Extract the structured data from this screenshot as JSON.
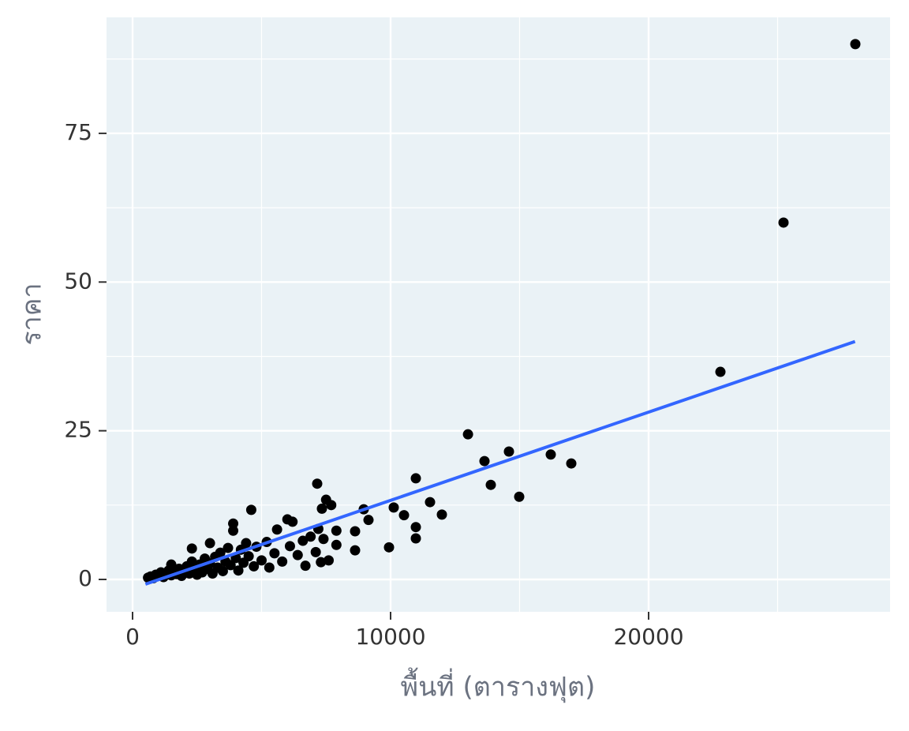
{
  "chart_data": {
    "type": "scatter",
    "xlabel": "พื้นที่ (ตารางฟุต)",
    "ylabel": "ราคา",
    "x": [
      600,
      700,
      800,
      900,
      1000,
      1100,
      1200,
      1300,
      1400,
      1500,
      1500,
      1600,
      1700,
      1800,
      1900,
      2000,
      2100,
      2200,
      2300,
      2300,
      2400,
      2500,
      2600,
      2700,
      2800,
      2900,
      3000,
      3000,
      3100,
      3200,
      3300,
      3400,
      3500,
      3600,
      3700,
      3800,
      3900,
      3900,
      4000,
      4100,
      4200,
      4300,
      4400,
      4500,
      4600,
      4700,
      4800,
      5000,
      5200,
      5300,
      5500,
      5600,
      5800,
      6000,
      6100,
      6200,
      6400,
      6600,
      6700,
      6900,
      7100,
      7200,
      7300,
      7400,
      7500,
      7600,
      7700,
      7900,
      7900,
      7156,
      7339,
      8624,
      8624,
      8960,
      9144,
      9939,
      10122,
      10520,
      10979,
      10979,
      10979,
      11529,
      11988,
      13000,
      13639,
      13884,
      14587,
      14985,
      16208,
      17003,
      22783,
      25229,
      28012
    ],
    "values": [
      0.3,
      0.5,
      0.2,
      0.8,
      0.6,
      1.2,
      0.4,
      1,
      1.5,
      0.7,
      2.5,
      1.3,
      0.9,
      1.8,
      0.6,
      1.4,
      2.2,
      1,
      3,
      5.2,
      1.6,
      0.8,
      2.5,
      1.2,
      3.5,
      1.8,
      6.1,
      2.7,
      1,
      3.8,
      2,
      4.5,
      1.4,
      3,
      5.3,
      2.4,
      9.4,
      8.2,
      3.6,
      1.5,
      5,
      2.8,
      6.1,
      3.9,
      11.7,
      2.2,
      5.5,
      3.2,
      6.3,
      2,
      4.4,
      8.4,
      3,
      10.1,
      5.6,
      9.7,
      4.1,
      6.5,
      2.3,
      7.2,
      4.6,
      8.5,
      2.9,
      6.8,
      13.4,
      3.2,
      12.5,
      8.2,
      5.8,
      16.1,
      11.9,
      8.1,
      4.9,
      11.8,
      10,
      5.4,
      12.1,
      10.8,
      17,
      8.8,
      6.9,
      13,
      10.9,
      24.4,
      19.9,
      15.9,
      21.5,
      13.9,
      21,
      19.5,
      34.9,
      60,
      90
    ],
    "color": "#000000",
    "fit": {
      "x": [
        500,
        28000
      ],
      "values": [
        -0.8,
        40
      ],
      "color": "#3366ff"
    },
    "xlim": [
      -1009,
      29358
    ],
    "ylim": [
      -5.44,
      94.5
    ],
    "xticks": [
      0,
      10000,
      20000
    ],
    "yticks": [
      0,
      25,
      50,
      75
    ],
    "xminorticks": [
      5000,
      15000,
      25000
    ],
    "yminorticks": [
      12.5,
      37.5,
      62.5,
      87.5
    ],
    "grid": true
  }
}
